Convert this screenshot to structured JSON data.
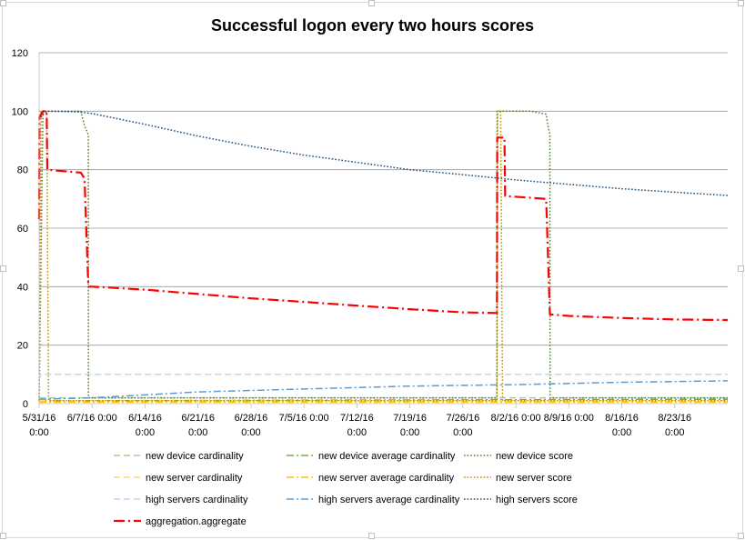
{
  "chart_data": {
    "type": "line",
    "title": "Successful logon every two hours scores",
    "xlabel": "",
    "ylabel": "",
    "ylim": [
      0,
      120
    ],
    "yticks": [
      0,
      20,
      40,
      60,
      80,
      100,
      120
    ],
    "grid": true,
    "legend_position": "bottom",
    "x_range": [
      "2016-05-31",
      "2016-08-30"
    ],
    "x_ticks": [
      {
        "date": "2016-05-31",
        "line1": "5/31/16",
        "line2": "0:00"
      },
      {
        "date": "2016-06-07",
        "line1": "6/7/16 0:00",
        "line2": ""
      },
      {
        "date": "2016-06-14",
        "line1": "6/14/16",
        "line2": "0:00"
      },
      {
        "date": "2016-06-21",
        "line1": "6/21/16",
        "line2": "0:00"
      },
      {
        "date": "2016-06-28",
        "line1": "6/28/16",
        "line2": "0:00"
      },
      {
        "date": "2016-07-05",
        "line1": "7/5/16 0:00",
        "line2": ""
      },
      {
        "date": "2016-07-12",
        "line1": "7/12/16",
        "line2": "0:00"
      },
      {
        "date": "2016-07-19",
        "line1": "7/19/16",
        "line2": "0:00"
      },
      {
        "date": "2016-07-26",
        "line1": "7/26/16",
        "line2": "0:00"
      },
      {
        "date": "2016-08-02",
        "line1": "8/2/16 0:00",
        "line2": ""
      },
      {
        "date": "2016-08-09",
        "line1": "8/9/16 0:00",
        "line2": ""
      },
      {
        "date": "2016-08-16",
        "line1": "8/16/16",
        "line2": "0:00"
      },
      {
        "date": "2016-08-23",
        "line1": "8/23/16",
        "line2": "0:00"
      }
    ],
    "series": [
      {
        "name": "new device cardinality",
        "color": "#a9d18e",
        "style": "dash",
        "points": [
          [
            "2016-05-31",
            2
          ],
          [
            "2016-08-30",
            2
          ]
        ]
      },
      {
        "name": "new device average cardinality",
        "color": "#70ad47",
        "style": "dashdot",
        "points": [
          [
            "2016-05-31",
            1
          ],
          [
            "2016-06-07",
            1
          ],
          [
            "2016-08-30",
            1.5
          ]
        ]
      },
      {
        "name": "new device score",
        "color": "#548235",
        "style": "dot",
        "points": [
          [
            "2016-05-31",
            1
          ],
          [
            "2016-05-31T12:00",
            100
          ],
          [
            "2016-06-05T12:00",
            100
          ],
          [
            "2016-06-06",
            95
          ],
          [
            "2016-06-06T12:00",
            92
          ],
          [
            "2016-06-06T12:30",
            2
          ],
          [
            "2016-07-30T12:00",
            2
          ],
          [
            "2016-07-30T12:30",
            100
          ],
          [
            "2016-08-04",
            100
          ],
          [
            "2016-08-06",
            99
          ],
          [
            "2016-08-06T06:00",
            95
          ],
          [
            "2016-08-06T12:00",
            92
          ],
          [
            "2016-08-06T12:30",
            2
          ],
          [
            "2016-08-30",
            2
          ]
        ]
      },
      {
        "name": "new server cardinality",
        "color": "#ffd966",
        "style": "dash",
        "points": [
          [
            "2016-05-31",
            1
          ],
          [
            "2016-08-30",
            1
          ]
        ]
      },
      {
        "name": "new server average cardinality",
        "color": "#ffc000",
        "style": "dashdot",
        "points": [
          [
            "2016-05-31",
            0.5
          ],
          [
            "2016-08-30",
            0.5
          ]
        ]
      },
      {
        "name": "new server score",
        "color": "#bf9000",
        "style": "dot",
        "points": [
          [
            "2016-05-31",
            1
          ],
          [
            "2016-05-31T06:00",
            100
          ],
          [
            "2016-06-01",
            100
          ],
          [
            "2016-06-01T06:00",
            1
          ],
          [
            "2016-07-30T12:00",
            1
          ],
          [
            "2016-07-30T14:00",
            100
          ],
          [
            "2016-07-31",
            100
          ],
          [
            "2016-07-31T06:00",
            1
          ],
          [
            "2016-08-30",
            1
          ]
        ]
      },
      {
        "name": "high servers cardinality",
        "color": "#bdd7ee",
        "style": "dash",
        "points": [
          [
            "2016-05-31",
            8
          ],
          [
            "2016-05-31T06:00",
            10
          ],
          [
            "2016-08-30",
            10
          ]
        ]
      },
      {
        "name": "high servers average cardinality",
        "color": "#5b9bd5",
        "style": "dashdot",
        "points": [
          [
            "2016-05-31",
            1.5
          ],
          [
            "2016-06-07",
            2
          ],
          [
            "2016-06-21",
            4
          ],
          [
            "2016-07-05",
            5
          ],
          [
            "2016-07-19",
            6
          ],
          [
            "2016-08-02",
            6.5
          ],
          [
            "2016-08-16",
            7.3
          ],
          [
            "2016-08-30",
            7.8
          ]
        ]
      },
      {
        "name": "high servers score",
        "color": "#1f4e79",
        "style": "dot",
        "points": [
          [
            "2016-05-31",
            97
          ],
          [
            "2016-05-31T12:00",
            99
          ],
          [
            "2016-06-01",
            100
          ],
          [
            "2016-06-05",
            99.8
          ],
          [
            "2016-06-07",
            99.2
          ],
          [
            "2016-06-14",
            95.5
          ],
          [
            "2016-06-21",
            91.5
          ],
          [
            "2016-06-28",
            88
          ],
          [
            "2016-07-05",
            85
          ],
          [
            "2016-07-12",
            82.5
          ],
          [
            "2016-07-19",
            80
          ],
          [
            "2016-07-26",
            78.3
          ],
          [
            "2016-08-02",
            76.5
          ],
          [
            "2016-08-09",
            75
          ],
          [
            "2016-08-16",
            73.5
          ],
          [
            "2016-08-23",
            72.3
          ],
          [
            "2016-08-30",
            71.2
          ]
        ]
      },
      {
        "name": "aggregation.aggregate",
        "color": "#ff0000",
        "style": "longdashdot",
        "width": 2.2,
        "points": [
          [
            "2016-05-31",
            63
          ],
          [
            "2016-05-31T01:00",
            98
          ],
          [
            "2016-05-31T12:00",
            100
          ],
          [
            "2016-06-01",
            100
          ],
          [
            "2016-06-01T02:00",
            80
          ],
          [
            "2016-06-05T12:00",
            79
          ],
          [
            "2016-06-06",
            77
          ],
          [
            "2016-06-06T12:00",
            40
          ],
          [
            "2016-06-07",
            40
          ],
          [
            "2016-06-14",
            39
          ],
          [
            "2016-06-21",
            37.5
          ],
          [
            "2016-06-28",
            36
          ],
          [
            "2016-07-05",
            34.8
          ],
          [
            "2016-07-12",
            33.5
          ],
          [
            "2016-07-19",
            32.3
          ],
          [
            "2016-07-26",
            31.2
          ],
          [
            "2016-07-30T12:00",
            31
          ],
          [
            "2016-07-30T13:00",
            91
          ],
          [
            "2016-07-31T12:00",
            91
          ],
          [
            "2016-07-31T14:00",
            71
          ],
          [
            "2016-08-06",
            70
          ],
          [
            "2016-08-06T12:00",
            30.5
          ],
          [
            "2016-08-09",
            30
          ],
          [
            "2016-08-16",
            29.3
          ],
          [
            "2016-08-23",
            28.8
          ],
          [
            "2016-08-30",
            28.6
          ]
        ]
      }
    ],
    "legend_order": [
      "new device cardinality",
      "new device average cardinality",
      "new device score",
      "new server cardinality",
      "new server average cardinality",
      "new server score",
      "high servers cardinality",
      "high servers average cardinality",
      "high servers score",
      "aggregation.aggregate"
    ]
  }
}
